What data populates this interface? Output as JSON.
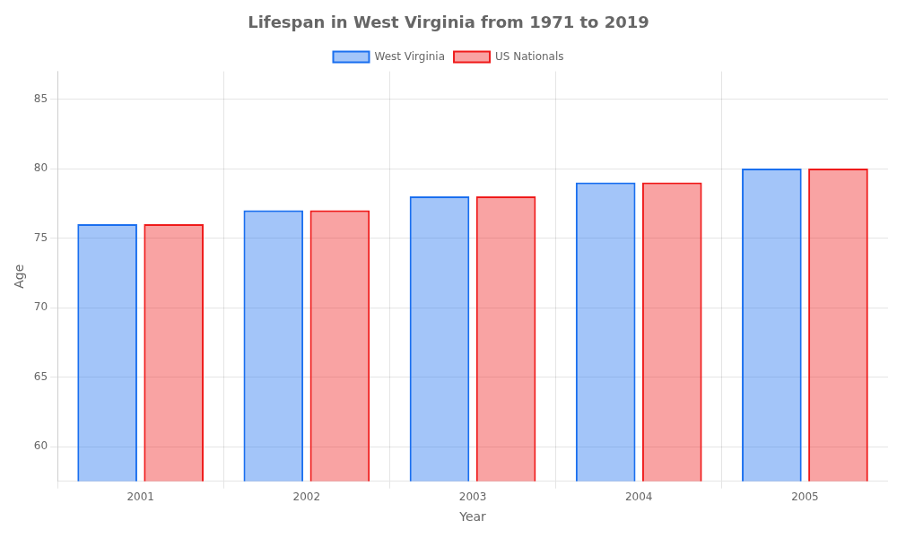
{
  "chart_data": {
    "type": "bar",
    "title": "Lifespan in West Virginia from 1971 to 2019",
    "x_label": "Year",
    "y_label": "Age",
    "categories": [
      "2001",
      "2002",
      "2003",
      "2004",
      "2005"
    ],
    "series": [
      {
        "name": "West Virginia",
        "color": "#1a6fef",
        "values": [
          76,
          77,
          78,
          79,
          80
        ]
      },
      {
        "name": "US Nationals",
        "color": "#ef1a1a",
        "values": [
          76,
          77,
          78,
          79,
          80
        ]
      }
    ],
    "ylim": [
      57.5,
      87
    ],
    "yticks": [
      60,
      65,
      70,
      75,
      80,
      85
    ],
    "grid": true,
    "legend": "top"
  }
}
